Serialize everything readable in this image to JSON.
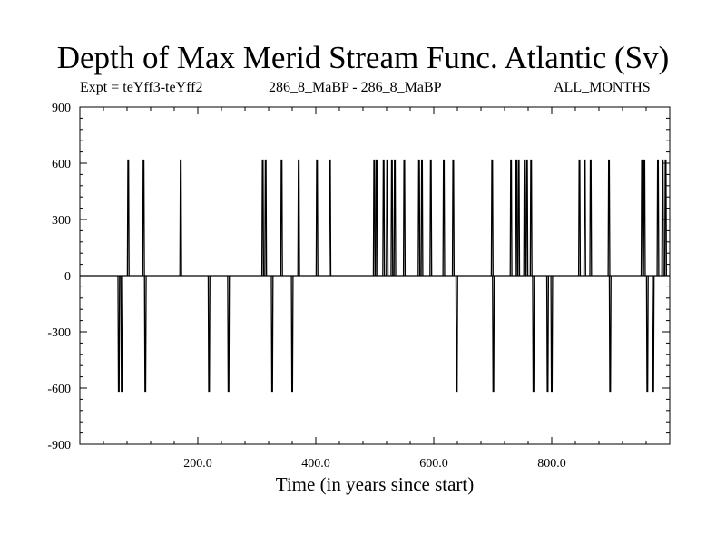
{
  "header": {
    "title": "Depth of Max Merid Stream Func. Atlantic (Sv)",
    "expt": "Expt = teYff3-teYff2",
    "comparison": "286_8_MaBP - 286_8_MaBP",
    "period": "ALL_MONTHS"
  },
  "chart_data": {
    "type": "line",
    "title": "Depth of Max Merid Stream Func. Atlantic (Sv)",
    "xlabel": "Time (in years since start)",
    "ylabel": "",
    "xlim": [
      0,
      1000
    ],
    "ylim": [
      -900,
      900
    ],
    "x_ticks": [
      200,
      400,
      600,
      800
    ],
    "x_tick_labels": [
      "200.0",
      "400.0",
      "600.0",
      "800.0"
    ],
    "y_ticks": [
      900,
      600,
      300,
      0,
      -300,
      -600,
      -900
    ],
    "y_tick_labels": [
      "900",
      "600",
      "300",
      "0",
      "-300",
      "-600",
      "-900"
    ],
    "line_color": "#000000",
    "baseline": 0,
    "series": [
      {
        "spikes": [
          {
            "x": 66,
            "value": -617
          },
          {
            "x": 71,
            "value": -617
          },
          {
            "x": 82,
            "value": 617
          },
          {
            "x": 108,
            "value": 617
          },
          {
            "x": 111,
            "value": -617
          },
          {
            "x": 171,
            "value": 617
          },
          {
            "x": 219,
            "value": -617
          },
          {
            "x": 252,
            "value": -617
          },
          {
            "x": 310,
            "value": 617
          },
          {
            "x": 315,
            "value": 617
          },
          {
            "x": 326,
            "value": -617
          },
          {
            "x": 342,
            "value": 617
          },
          {
            "x": 360,
            "value": -617
          },
          {
            "x": 371,
            "value": 617
          },
          {
            "x": 402,
            "value": 617
          },
          {
            "x": 424,
            "value": 617
          },
          {
            "x": 499,
            "value": 617
          },
          {
            "x": 503,
            "value": 617
          },
          {
            "x": 515,
            "value": 617
          },
          {
            "x": 521,
            "value": 617
          },
          {
            "x": 529,
            "value": 617
          },
          {
            "x": 534,
            "value": 617
          },
          {
            "x": 550,
            "value": 617
          },
          {
            "x": 575,
            "value": 617
          },
          {
            "x": 580,
            "value": 617
          },
          {
            "x": 595,
            "value": 617
          },
          {
            "x": 617,
            "value": 617
          },
          {
            "x": 633,
            "value": 617
          },
          {
            "x": 639,
            "value": -617
          },
          {
            "x": 699,
            "value": 617
          },
          {
            "x": 701,
            "value": -617
          },
          {
            "x": 731,
            "value": 617
          },
          {
            "x": 740,
            "value": 617
          },
          {
            "x": 744,
            "value": 617
          },
          {
            "x": 754,
            "value": 617
          },
          {
            "x": 758,
            "value": 617
          },
          {
            "x": 765,
            "value": 617
          },
          {
            "x": 769,
            "value": -617
          },
          {
            "x": 793,
            "value": -617
          },
          {
            "x": 800,
            "value": -617
          },
          {
            "x": 847,
            "value": 617
          },
          {
            "x": 856,
            "value": 617
          },
          {
            "x": 866,
            "value": 617
          },
          {
            "x": 897,
            "value": 617
          },
          {
            "x": 899,
            "value": -617
          },
          {
            "x": 953,
            "value": 617
          },
          {
            "x": 957,
            "value": 617
          },
          {
            "x": 962,
            "value": -617
          },
          {
            "x": 972,
            "value": -617
          },
          {
            "x": 980,
            "value": 617
          },
          {
            "x": 988,
            "value": 617
          },
          {
            "x": 993,
            "value": 617
          }
        ]
      }
    ]
  }
}
